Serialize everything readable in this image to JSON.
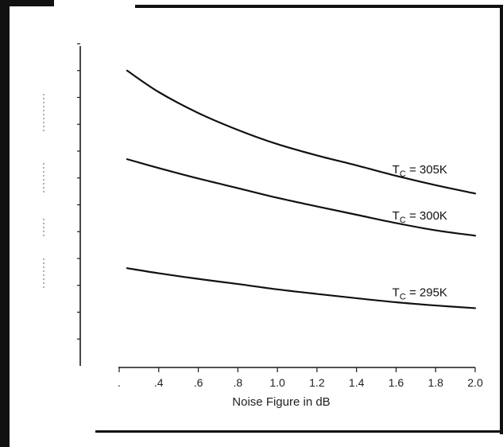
{
  "chart_data": {
    "type": "line",
    "title": "",
    "xlabel": "Noise Figure in dB",
    "ylabel": "",
    "xlim": [
      0.2,
      2.0
    ],
    "ylim": [
      0,
      12
    ],
    "grid": false,
    "x_ticks": [
      {
        "value": 0.2,
        "label": "."
      },
      {
        "value": 0.4,
        "label": ".4"
      },
      {
        "value": 0.6,
        "label": ".6"
      },
      {
        "value": 0.8,
        "label": ".8"
      },
      {
        "value": 1.0,
        "label": "1.0"
      },
      {
        "value": 1.2,
        "label": "1.2"
      },
      {
        "value": 1.4,
        "label": "1.4"
      },
      {
        "value": 1.6,
        "label": "1.6"
      },
      {
        "value": 1.8,
        "label": "1.8"
      },
      {
        "value": 2.0,
        "label": "2.0"
      }
    ],
    "y_tick_values": [
      1,
      2,
      3,
      4,
      5,
      6,
      7,
      8,
      9,
      10,
      11,
      12
    ],
    "series": [
      {
        "label_main": "T",
        "label_sub": "C",
        "label_rest": " = 305K",
        "x": [
          0.24,
          0.4,
          0.6,
          0.8,
          1.0,
          1.2,
          1.4,
          1.6,
          1.8,
          2.0
        ],
        "y": [
          11.0,
          10.2,
          9.42,
          8.79,
          8.26,
          7.84,
          7.47,
          7.08,
          6.73,
          6.42
        ]
      },
      {
        "label_main": "T",
        "label_sub": "C",
        "label_rest": " = 300K",
        "x": [
          0.24,
          0.4,
          0.6,
          0.8,
          1.0,
          1.2,
          1.4,
          1.6,
          1.8,
          2.0
        ],
        "y": [
          7.7,
          7.37,
          6.98,
          6.62,
          6.26,
          5.94,
          5.63,
          5.32,
          5.05,
          4.85
        ]
      },
      {
        "label_main": "T",
        "label_sub": "C",
        "label_rest": " = 295K",
        "x": [
          0.24,
          0.4,
          0.6,
          0.8,
          1.0,
          1.2,
          1.4,
          1.6,
          1.8,
          2.0
        ],
        "y": [
          3.64,
          3.45,
          3.24,
          3.05,
          2.85,
          2.68,
          2.52,
          2.37,
          2.25,
          2.15
        ]
      }
    ]
  }
}
